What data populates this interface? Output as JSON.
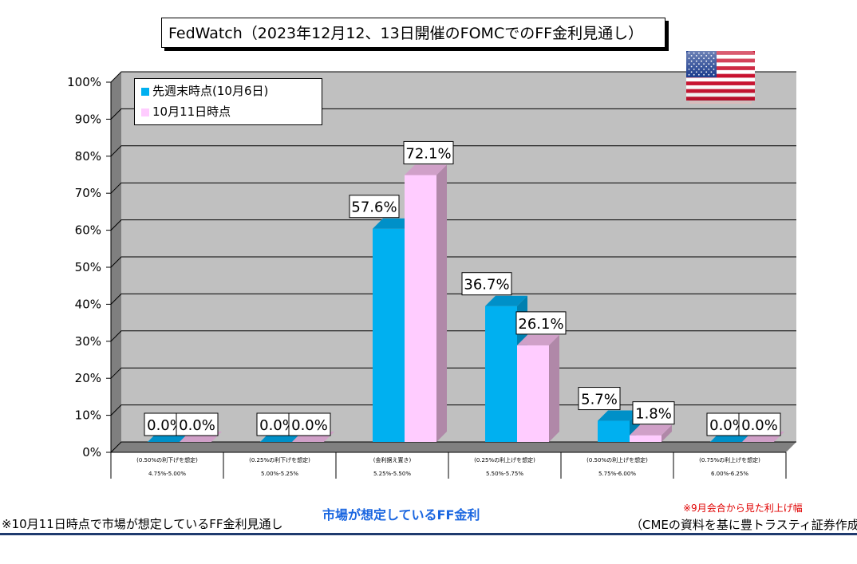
{
  "title": "FedWatch（2023年12月12、13日開催のFOMCでのFF金利見通し）",
  "legend": {
    "items": [
      {
        "label": "先週末時点(10月6日)",
        "color": "#00b0f0"
      },
      {
        "label": "10月11日時点",
        "color": "#ffccff"
      }
    ]
  },
  "chart_data": {
    "type": "bar",
    "categories": [
      "4.75%-5.00%",
      "5.00%-5.25%",
      "5.25%-5.50%",
      "5.50%-5.75%",
      "5.75%-6.00%",
      "6.00%-6.25%"
    ],
    "category_notes": [
      "(0.50%の利下げを想定)",
      "(0.25%の利下げを想定)",
      "(金利据え置き)",
      "(0.25%の利上げを想定)",
      "(0.50%の利上げを想定)",
      "(0.75%の利上げを想定)"
    ],
    "series": [
      {
        "name": "先週末時点(10月6日)",
        "values": [
          0.0,
          0.0,
          57.6,
          36.7,
          5.7,
          0.0
        ],
        "labels": [
          "0.0%",
          "0.0%",
          "57.6%",
          "36.7%",
          "5.7%",
          "0.0%"
        ]
      },
      {
        "name": "10月11日時点",
        "values": [
          0.0,
          0.0,
          72.1,
          26.1,
          1.8,
          0.0
        ],
        "labels": [
          "0.0%",
          "0.0%",
          "72.1%",
          "26.1%",
          "1.8%",
          "0.0%"
        ]
      }
    ],
    "ylim": [
      0,
      100
    ],
    "yticks": [
      "0%",
      "10%",
      "20%",
      "30%",
      "40%",
      "50%",
      "60%",
      "70%",
      "80%",
      "90%",
      "100%"
    ],
    "xlabel": "市場が想定しているFF金利",
    "grid": true,
    "legend_position": "top-left"
  },
  "colors": {
    "plot_bg": "#c0c0c0",
    "wall_side": "#7f7f7f",
    "floor": "#808080",
    "series1_front": "#00b0f0",
    "series1_side": "#0080b0",
    "series1_top": "#0090c8",
    "series2_front": "#ffccff",
    "series2_side": "#b088a8",
    "series2_top": "#d0a0c8",
    "accent": "#1a66e0"
  },
  "notes": {
    "bottom_left": "※10月11日時点で市場が想定しているFF金利見通し",
    "red_note": "※9月会合から見た利上げ幅",
    "source": "（CMEの資料を基に豊トラスティ証券作成）"
  },
  "flag_icon": "us-flag-icon"
}
